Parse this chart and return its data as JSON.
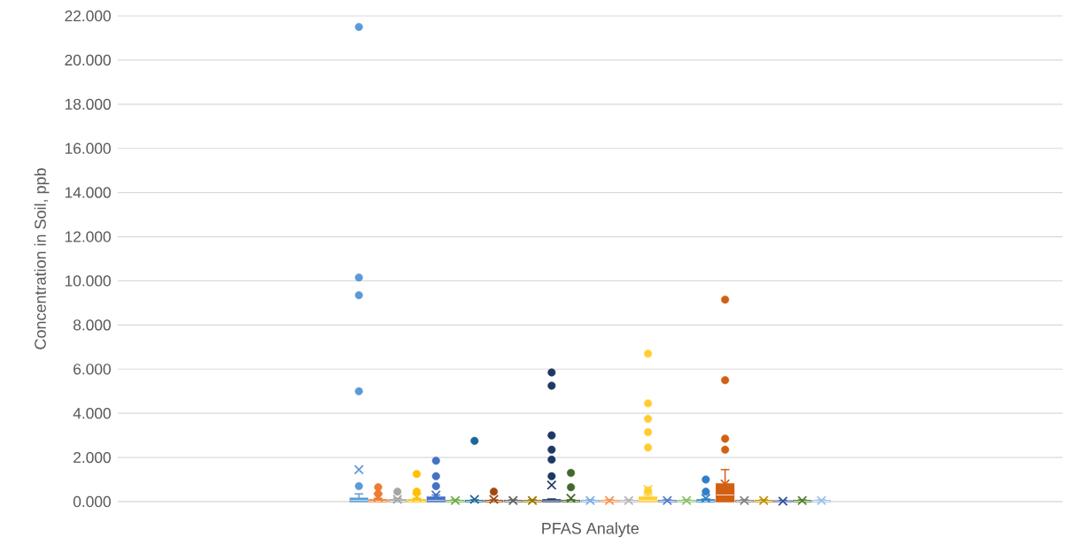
{
  "chart_data": {
    "type": "box",
    "xlabel": "PFAS Analyte",
    "ylabel": "Concentration in Soil, ppb",
    "categories": [
      null
    ],
    "ylim": [
      0,
      22
    ],
    "grid": "y",
    "yticks": [
      {
        "value": 0,
        "label": "0.000"
      },
      {
        "value": 2,
        "label": "2.000"
      },
      {
        "value": 4,
        "label": "4.000"
      },
      {
        "value": 6,
        "label": "6.000"
      },
      {
        "value": 8,
        "label": "8.000"
      },
      {
        "value": 10,
        "label": "10.000"
      },
      {
        "value": 12,
        "label": "12.000"
      },
      {
        "value": 14,
        "label": "14.000"
      },
      {
        "value": 16,
        "label": "16.000"
      },
      {
        "value": 18,
        "label": "18.000"
      },
      {
        "value": 20,
        "label": "20.000"
      },
      {
        "value": 22,
        "label": "22.000"
      }
    ],
    "series": [
      {
        "color": "#5b9bd5",
        "boxes": [
          {
            "low": 0,
            "q1": 0,
            "median": 0.05,
            "q3": 0.15,
            "high": 0.35,
            "mean": 1.45,
            "outliers": [
              21.5,
              10.15,
              9.35,
              5.0,
              0.7
            ]
          }
        ]
      },
      {
        "color": "#ed7d31",
        "boxes": [
          {
            "low": 0,
            "q1": 0,
            "median": 0.02,
            "q3": 0.08,
            "high": 0.15,
            "mean": 0.2,
            "outliers": [
              0.65,
              0.35
            ]
          }
        ]
      },
      {
        "color": "#a5a5a5",
        "boxes": [
          {
            "low": 0,
            "q1": 0,
            "median": 0.02,
            "q3": 0.08,
            "high": 0.15,
            "mean": 0.1,
            "outliers": [
              0.45
            ]
          }
        ]
      },
      {
        "color": "#ffc000",
        "boxes": [
          {
            "low": 0,
            "q1": 0,
            "median": 0.02,
            "q3": 0.08,
            "high": 0.15,
            "mean": 0.2,
            "outliers": [
              1.25,
              0.45
            ]
          }
        ]
      },
      {
        "color": "#4472c4",
        "boxes": [
          {
            "low": 0,
            "q1": 0,
            "median": 0.05,
            "q3": 0.2,
            "high": 0.3,
            "mean": 0.3,
            "outliers": [
              1.85,
              1.15,
              0.7
            ]
          }
        ]
      },
      {
        "color": "#70ad47",
        "boxes": [
          {
            "low": 0,
            "q1": 0,
            "median": 0.02,
            "q3": 0.05,
            "high": 0.08,
            "mean": 0.05
          }
        ]
      },
      {
        "color": "#1f6699",
        "boxes": [
          {
            "low": 0,
            "q1": 0,
            "median": 0.02,
            "q3": 0.05,
            "high": 0.08,
            "mean": 0.1,
            "outliers": [
              2.75
            ]
          }
        ]
      },
      {
        "color": "#9e480e",
        "boxes": [
          {
            "low": 0,
            "q1": 0,
            "median": 0.02,
            "q3": 0.05,
            "high": 0.08,
            "mean": 0.1,
            "outliers": [
              0.45
            ]
          }
        ]
      },
      {
        "color": "#636363",
        "boxes": [
          {
            "low": 0,
            "q1": 0,
            "median": 0.02,
            "q3": 0.05,
            "high": 0.08,
            "mean": 0.05
          }
        ]
      },
      {
        "color": "#997300",
        "boxes": [
          {
            "low": 0,
            "q1": 0,
            "median": 0.02,
            "q3": 0.05,
            "high": 0.08,
            "mean": 0.05
          }
        ]
      },
      {
        "color": "#1f3864",
        "boxes": [
          {
            "low": 0,
            "q1": 0,
            "median": 0.03,
            "q3": 0.08,
            "high": 0.12,
            "mean": 0.75,
            "outliers": [
              5.85,
              5.25,
              3.0,
              2.35,
              1.9,
              1.15
            ]
          }
        ]
      },
      {
        "color": "#43682b",
        "boxes": [
          {
            "low": 0,
            "q1": 0,
            "median": 0.02,
            "q3": 0.05,
            "high": 0.08,
            "mean": 0.15,
            "outliers": [
              1.3,
              0.65
            ]
          }
        ]
      },
      {
        "color": "#7cafdd",
        "boxes": [
          {
            "low": 0,
            "q1": 0,
            "median": 0.02,
            "q3": 0.05,
            "high": 0.08,
            "mean": 0.05
          }
        ]
      },
      {
        "color": "#f1975a",
        "boxes": [
          {
            "low": 0,
            "q1": 0,
            "median": 0.02,
            "q3": 0.05,
            "high": 0.08,
            "mean": 0.05
          }
        ]
      },
      {
        "color": "#b7b7b7",
        "boxes": [
          {
            "low": 0,
            "q1": 0,
            "median": 0.02,
            "q3": 0.05,
            "high": 0.08,
            "mean": 0.05
          }
        ]
      },
      {
        "color": "#ffcd33",
        "boxes": [
          {
            "low": 0,
            "q1": 0,
            "median": 0.05,
            "q3": 0.2,
            "high": 0.3,
            "mean": 0.55,
            "outliers": [
              6.7,
              4.45,
              3.75,
              3.15,
              2.45,
              0.5
            ]
          }
        ]
      },
      {
        "color": "#5b7fc9",
        "boxes": [
          {
            "low": 0,
            "q1": 0,
            "median": 0.02,
            "q3": 0.05,
            "high": 0.08,
            "mean": 0.05
          }
        ]
      },
      {
        "color": "#8cc168",
        "boxes": [
          {
            "low": 0,
            "q1": 0,
            "median": 0.02,
            "q3": 0.05,
            "high": 0.08,
            "mean": 0.05
          }
        ]
      },
      {
        "color": "#2e80c8",
        "boxes": [
          {
            "low": 0,
            "q1": 0,
            "median": 0.02,
            "q3": 0.08,
            "high": 0.12,
            "mean": 0.15,
            "outliers": [
              1.0,
              0.45
            ]
          }
        ]
      },
      {
        "color": "#d26012",
        "boxes": [
          {
            "low": 0,
            "q1": 0,
            "median": 0.3,
            "q3": 0.8,
            "high": 1.45,
            "mean": 0.8,
            "outliers": [
              9.15,
              5.5,
              2.85,
              2.35
            ]
          }
        ]
      },
      {
        "color": "#848484",
        "boxes": [
          {
            "low": 0,
            "q1": 0,
            "median": 0.02,
            "q3": 0.05,
            "high": 0.08,
            "mean": 0.05
          }
        ]
      },
      {
        "color": "#bf9000",
        "boxes": [
          {
            "low": 0,
            "q1": 0,
            "median": 0.02,
            "q3": 0.05,
            "high": 0.08,
            "mean": 0.05
          }
        ]
      },
      {
        "color": "#2f4f9a",
        "boxes": [
          {
            "low": 0,
            "q1": 0,
            "median": 0.01,
            "q3": 0.03,
            "high": 0.05,
            "mean": 0.02
          }
        ]
      },
      {
        "color": "#548235",
        "boxes": [
          {
            "low": 0,
            "q1": 0,
            "median": 0.02,
            "q3": 0.05,
            "high": 0.08,
            "mean": 0.05
          }
        ]
      },
      {
        "color": "#9dc3e6",
        "boxes": [
          {
            "low": 0,
            "q1": 0,
            "median": 0.02,
            "q3": 0.05,
            "high": 0.08,
            "mean": 0.05
          }
        ]
      }
    ]
  }
}
